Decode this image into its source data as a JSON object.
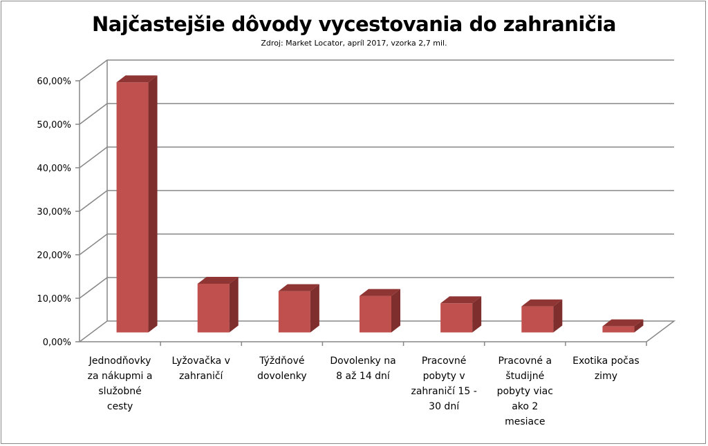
{
  "chart_data": {
    "type": "bar",
    "title": "Najčastejšie dôvody vycestovania do zahraničia",
    "subtitle": "Zdroj: Market Locator, apríl 2017, vzorka 2,7 mil.",
    "categories": [
      [
        "Jednodňovky",
        "za nákupmi a",
        "služobné",
        "cesty"
      ],
      [
        "Lyžovačka v",
        "zahraničí"
      ],
      [
        "Týždňové",
        "dovolenky"
      ],
      [
        "Dovolenky na",
        "8 až 14 dní"
      ],
      [
        "Pracovné",
        "pobyty v",
        "zahraničí 15 -",
        "30 dní"
      ],
      [
        "Pracovné a",
        "študijné",
        "pobyty viac",
        "ako 2",
        "mesiace"
      ],
      [
        "Exotika počas",
        "zimy"
      ]
    ],
    "values": [
      57.5,
      11.2,
      9.5,
      8.4,
      6.7,
      6.0,
      1.4
    ],
    "ylim": [
      0,
      60
    ],
    "yticks": [
      "0,00%",
      "10,00%",
      "20,00%",
      "30,00%",
      "40,00%",
      "50,00%",
      "60,00%"
    ],
    "xlabel": "",
    "ylabel": "",
    "grid": true,
    "legend": "none",
    "colors": {
      "bar_front": "#c0504d",
      "bar_side": "#7e2f2d",
      "bar_top": "#8f3533",
      "grid": "#868686",
      "floor": "#ffffff"
    }
  }
}
